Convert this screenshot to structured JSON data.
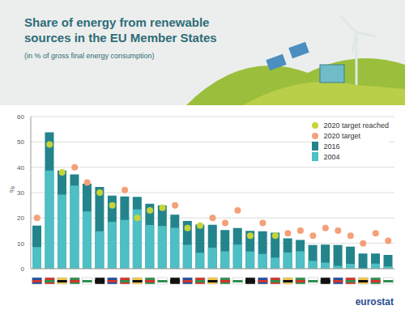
{
  "chart_data": {
    "type": "bar",
    "title": "Share of energy from renewable sources in the EU Member States",
    "subtitle": "(in % of gross final energy consumption)",
    "y_label": "%",
    "source": "eurostat",
    "categories": [
      null,
      null,
      null,
      null,
      null,
      null,
      null,
      null,
      null,
      null,
      null,
      null,
      null,
      null,
      null,
      null,
      null,
      null,
      null,
      null,
      null,
      null,
      null,
      null,
      null,
      null,
      null,
      null,
      null
    ],
    "series": [
      {
        "name": "2020 target reached",
        "type": "scatter",
        "marker": "circle",
        "color": "#c8d33a",
        "values": [
          null,
          49,
          38,
          null,
          null,
          30,
          25,
          null,
          20,
          23,
          24,
          null,
          16,
          17,
          null,
          null,
          null,
          13,
          null,
          13,
          null,
          null,
          null,
          null,
          null,
          null,
          null,
          null,
          null
        ]
      },
      {
        "name": "2020 target",
        "type": "scatter",
        "marker": "circle",
        "color": "#f4a079",
        "values": [
          20,
          null,
          null,
          40,
          34,
          null,
          null,
          31,
          null,
          null,
          null,
          25,
          null,
          null,
          20,
          18,
          23,
          null,
          18,
          null,
          14,
          15,
          13,
          16,
          15,
          13,
          10,
          14,
          11
        ]
      },
      {
        "name": "2016",
        "type": "bar",
        "color": "#23848c",
        "values": [
          17.0,
          53.8,
          38.7,
          37.2,
          33.5,
          32.2,
          28.8,
          28.5,
          28.3,
          25.6,
          25.0,
          21.3,
          18.8,
          17.4,
          17.3,
          15.2,
          16.0,
          14.9,
          14.8,
          14.2,
          12.0,
          11.3,
          9.3,
          9.5,
          9.3,
          8.7,
          6.0,
          6.0,
          5.4
        ]
      },
      {
        "name": "2004",
        "type": "bar",
        "color": "#4ebfc4",
        "values": [
          8.5,
          38.7,
          29.2,
          32.8,
          22.6,
          14.8,
          18.4,
          19.2,
          23.4,
          17.2,
          16.8,
          16.1,
          9.4,
          6.3,
          8.3,
          6.9,
          9.5,
          6.8,
          5.8,
          4.4,
          6.4,
          6.9,
          3.1,
          2.4,
          1.1,
          1.9,
          0.1,
          2.0,
          0.9
        ]
      }
    ],
    "ylim": [
      0,
      60
    ],
    "yticks": [
      0,
      10,
      20,
      30,
      40,
      50,
      60
    ],
    "grid": true,
    "legend": "upper right"
  }
}
